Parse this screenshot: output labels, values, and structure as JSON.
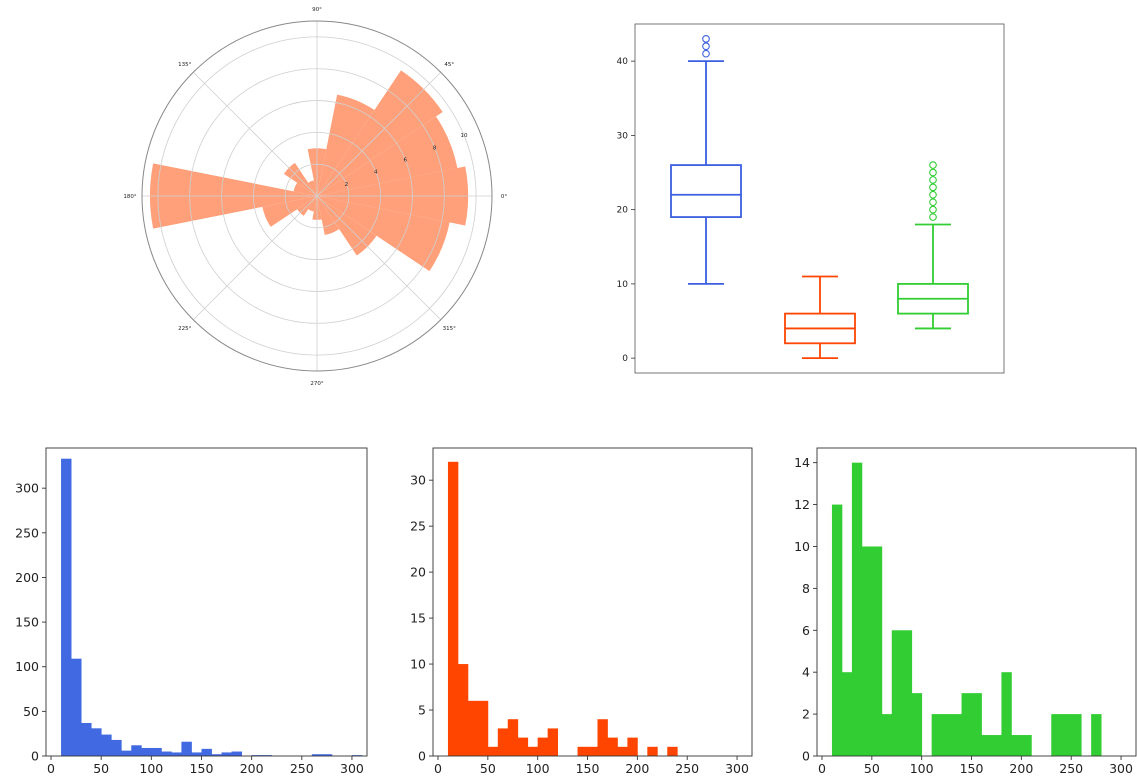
{
  "chart_data": [
    {
      "type": "polar-bar",
      "angle_ticks": [
        "0°",
        "45°",
        "90°",
        "135°",
        "180°",
        "225°",
        "270°",
        "315°"
      ],
      "radial_ticks": [
        2,
        4,
        6,
        8,
        10
      ],
      "rmax": 11,
      "color": "#FFA07A",
      "bars": [
        {
          "theta": 0,
          "r": 9.5
        },
        {
          "theta": 22.5,
          "r": 9.0
        },
        {
          "theta": 45,
          "r": 9.5
        },
        {
          "theta": 67.5,
          "r": 6.5
        },
        {
          "theta": 90,
          "r": 3.0
        },
        {
          "theta": 112.5,
          "r": 1.0
        },
        {
          "theta": 135,
          "r": 2.5
        },
        {
          "theta": 157.5,
          "r": 1.5
        },
        {
          "theta": 180,
          "r": 10.5
        },
        {
          "theta": 202.5,
          "r": 3.5
        },
        {
          "theta": 225,
          "r": 1.5
        },
        {
          "theta": 247.5,
          "r": 1.0
        },
        {
          "theta": 270,
          "r": 1.5
        },
        {
          "theta": 292.5,
          "r": 2.5
        },
        {
          "theta": 315,
          "r": 4.5
        },
        {
          "theta": 337.5,
          "r": 8.5
        }
      ]
    },
    {
      "type": "box",
      "ylim": [
        -2,
        45
      ],
      "yticks": [
        0,
        10,
        20,
        30,
        40
      ],
      "boxes": [
        {
          "color": "#3A5FE0",
          "whislo": 10,
          "q1": 19,
          "med": 22,
          "q3": 26,
          "whishi": 40,
          "fliers": [
            41,
            42,
            43
          ]
        },
        {
          "color": "#FF4500",
          "whislo": 0,
          "q1": 2,
          "med": 4,
          "q3": 6,
          "whishi": 11,
          "fliers": []
        },
        {
          "color": "#32CD32",
          "whislo": 4,
          "q1": 6,
          "med": 8,
          "q3": 10,
          "whishi": 18,
          "fliers": [
            19,
            20,
            21,
            22,
            23,
            24,
            25,
            26
          ]
        }
      ]
    },
    {
      "type": "histogram",
      "color": "#4169E1",
      "bin_start": 10,
      "bin_width": 10,
      "xlim": [
        -5,
        315
      ],
      "xticks": [
        0,
        50,
        100,
        150,
        200,
        250,
        300
      ],
      "ylim": [
        0,
        345
      ],
      "yticks": [
        0,
        50,
        100,
        150,
        200,
        250,
        300
      ],
      "counts": [
        333,
        109,
        37,
        31,
        24,
        18,
        6,
        12,
        9,
        9,
        5,
        4,
        16,
        4,
        8,
        2,
        4,
        5,
        0,
        1,
        1,
        0,
        0,
        0,
        0,
        2,
        2,
        0,
        0,
        1
      ]
    },
    {
      "type": "histogram",
      "color": "#FF4500",
      "bin_start": 10,
      "bin_width": 10,
      "xlim": [
        -5,
        315
      ],
      "xticks": [
        0,
        50,
        100,
        150,
        200,
        250,
        300
      ],
      "ylim": [
        0,
        33.5
      ],
      "yticks": [
        0,
        5,
        10,
        15,
        20,
        25,
        30
      ],
      "counts": [
        32,
        10,
        6,
        6,
        1,
        3,
        4,
        2,
        1,
        2,
        3,
        0,
        0,
        1,
        1,
        4,
        2,
        1,
        2,
        0,
        1,
        0,
        1,
        0,
        0,
        0,
        0,
        0,
        0,
        0
      ]
    },
    {
      "type": "histogram",
      "color": "#32CD32",
      "bin_start": 10,
      "bin_width": 10,
      "xlim": [
        -5,
        315
      ],
      "xticks": [
        0,
        50,
        100,
        150,
        200,
        250,
        300
      ],
      "ylim": [
        0,
        14.7
      ],
      "yticks": [
        0,
        2,
        4,
        6,
        8,
        10,
        12,
        14
      ],
      "counts": [
        12,
        4,
        14,
        10,
        10,
        2,
        6,
        6,
        3,
        0,
        2,
        2,
        2,
        3,
        3,
        1,
        1,
        4,
        1,
        1,
        0,
        0,
        2,
        2,
        2,
        0,
        2,
        0,
        0,
        0
      ]
    }
  ]
}
